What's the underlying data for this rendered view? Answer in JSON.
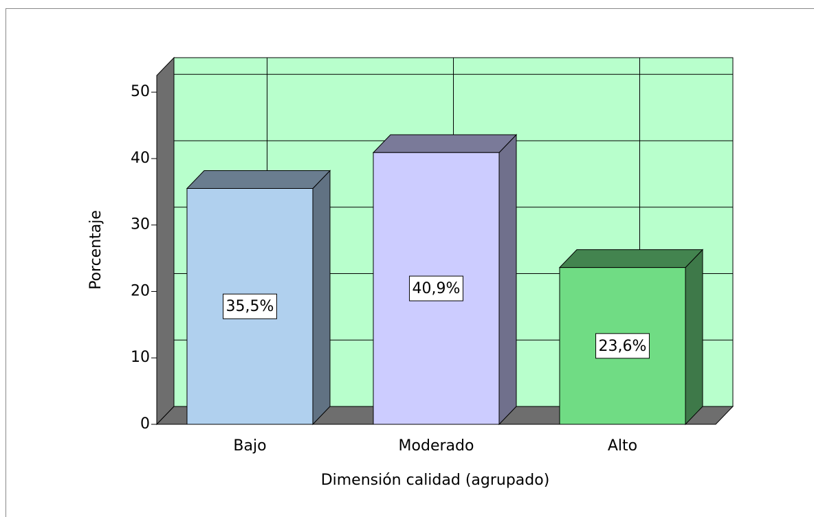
{
  "chart_data": {
    "type": "bar3d",
    "categories": [
      "Bajo",
      "Moderado",
      "Alto"
    ],
    "values": [
      35.5,
      40.9,
      23.6
    ],
    "value_labels": [
      "35,5%",
      "40,9%",
      "23,6%"
    ],
    "colors": [
      "#b0d0ee",
      "#ccccff",
      "#70dc84"
    ],
    "x_label": "Dimensión calidad (agrupado)",
    "y_label": "Porcentaje",
    "ylim": [
      0,
      52.5
    ],
    "yticks": [
      0,
      10,
      20,
      30,
      40,
      50
    ],
    "grid": true
  }
}
